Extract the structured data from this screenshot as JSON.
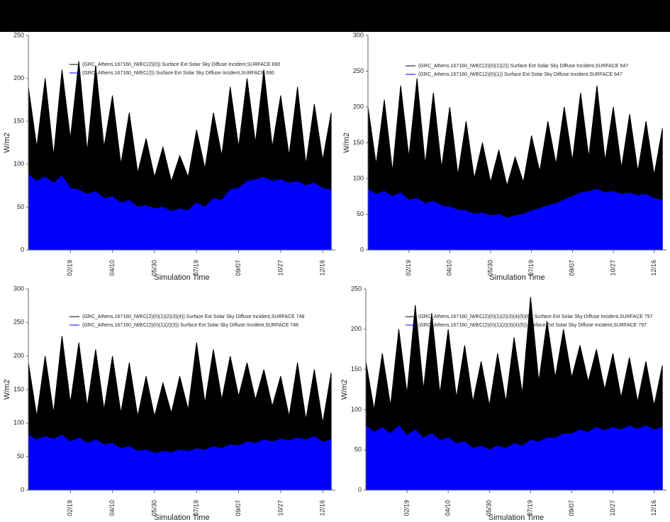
{
  "chart_data": [
    {
      "type": "area",
      "ylabel": "W/m2",
      "xlabel": "Simulation Time",
      "xlim": [
        0,
        365
      ],
      "xticks": [
        {
          "value": 50,
          "label": "02/19"
        },
        {
          "value": 100,
          "label": "04/10"
        },
        {
          "value": 150,
          "label": "05/30"
        },
        {
          "value": 200,
          "label": "07/19"
        },
        {
          "value": 250,
          "label": "09/07"
        },
        {
          "value": 300,
          "label": "10/27"
        },
        {
          "value": 350,
          "label": "12/16"
        }
      ],
      "ylim": [
        0,
        250
      ],
      "yticks": [
        0,
        50,
        100,
        150,
        200,
        250
      ],
      "x": [
        0,
        10,
        20,
        30,
        40,
        50,
        60,
        70,
        80,
        90,
        100,
        110,
        120,
        130,
        140,
        150,
        160,
        170,
        180,
        190,
        200,
        210,
        220,
        230,
        240,
        250,
        260,
        270,
        280,
        290,
        300,
        310,
        320,
        330,
        340,
        350,
        360
      ],
      "series": [
        {
          "name": "(GRC_Athens.167160_IWEC(2)(0)) Surface Ext Solar Sky Diffuse Incident,SURFACE 690",
          "color": "#000000",
          "values": [
            190,
            120,
            200,
            110,
            210,
            130,
            220,
            115,
            215,
            120,
            180,
            100,
            160,
            90,
            130,
            85,
            120,
            80,
            110,
            85,
            140,
            95,
            160,
            110,
            190,
            120,
            200,
            125,
            210,
            120,
            180,
            110,
            190,
            100,
            170,
            105,
            160
          ]
        },
        {
          "name": "(GRC_Athens.167160_IWEC(2)) Surface Ext Solar Sky Diffuse Incident,SURFACE 690",
          "color": "#0000ff",
          "values": [
            88,
            80,
            85,
            78,
            86,
            72,
            70,
            65,
            68,
            60,
            62,
            55,
            58,
            50,
            52,
            48,
            50,
            45,
            48,
            46,
            55,
            50,
            60,
            58,
            70,
            72,
            80,
            82,
            85,
            80,
            82,
            78,
            80,
            75,
            78,
            72,
            70
          ]
        }
      ]
    },
    {
      "type": "area",
      "ylabel": "W/m2",
      "xlabel": "Simulation Time",
      "xlim": [
        0,
        365
      ],
      "xticks": [
        {
          "value": 50,
          "label": "02/19"
        },
        {
          "value": 100,
          "label": "04/10"
        },
        {
          "value": 150,
          "label": "05/30"
        },
        {
          "value": 200,
          "label": "07/19"
        },
        {
          "value": 250,
          "label": "09/07"
        },
        {
          "value": 300,
          "label": "10/27"
        },
        {
          "value": 350,
          "label": "12/16"
        }
      ],
      "ylim": [
        0,
        300
      ],
      "yticks": [
        0,
        50,
        100,
        150,
        200,
        250,
        300
      ],
      "x": [
        0,
        10,
        20,
        30,
        40,
        50,
        60,
        70,
        80,
        90,
        100,
        110,
        120,
        130,
        140,
        150,
        160,
        170,
        180,
        190,
        200,
        210,
        220,
        230,
        240,
        250,
        260,
        270,
        280,
        290,
        300,
        310,
        320,
        330,
        340,
        350,
        360
      ],
      "series": [
        {
          "name": "(GRC_Athens.167160_IWEC(2)(0)(1)(2)) Surface Ext Solar Sky Diffuse Incident,SURFACE 647",
          "color": "#000000",
          "values": [
            200,
            120,
            210,
            110,
            230,
            130,
            240,
            120,
            220,
            115,
            200,
            105,
            180,
            100,
            150,
            95,
            140,
            90,
            130,
            95,
            160,
            110,
            180,
            120,
            200,
            125,
            220,
            130,
            230,
            125,
            200,
            115,
            190,
            110,
            180,
            105,
            170
          ]
        },
        {
          "name": "(GRC_Athens.167160_IWEC(2)(0)(1)) Surface Ext Solar Sky Diffuse Incident,SURFACE 647",
          "color": "#0000ff",
          "values": [
            85,
            78,
            82,
            75,
            80,
            70,
            72,
            65,
            68,
            62,
            60,
            56,
            55,
            50,
            52,
            48,
            50,
            45,
            48,
            50,
            55,
            58,
            62,
            65,
            70,
            75,
            80,
            82,
            85,
            80,
            82,
            78,
            80,
            76,
            78,
            72,
            70
          ]
        }
      ]
    },
    {
      "type": "area",
      "ylabel": "W/m2",
      "xlabel": "Simulation Time",
      "xlim": [
        0,
        365
      ],
      "xticks": [
        {
          "value": 50,
          "label": "02/19"
        },
        {
          "value": 100,
          "label": "04/10"
        },
        {
          "value": 150,
          "label": "05/30"
        },
        {
          "value": 200,
          "label": "07/19"
        },
        {
          "value": 250,
          "label": "09/07"
        },
        {
          "value": 300,
          "label": "10/27"
        },
        {
          "value": 350,
          "label": "12/16"
        }
      ],
      "ylim": [
        0,
        300
      ],
      "yticks": [
        0,
        50,
        100,
        150,
        200,
        250,
        300
      ],
      "x": [
        0,
        10,
        20,
        30,
        40,
        50,
        60,
        70,
        80,
        90,
        100,
        110,
        120,
        130,
        140,
        150,
        160,
        170,
        180,
        190,
        200,
        210,
        220,
        230,
        240,
        250,
        260,
        270,
        280,
        290,
        300,
        310,
        320,
        330,
        340,
        350,
        360
      ],
      "series": [
        {
          "name": "(GRC_Athens.167160_IWEC(2)(0)(1)(2)(3)(4)) Surface Ext Solar Sky Diffuse Incident,SURFACE 748",
          "color": "#000000",
          "values": [
            190,
            110,
            200,
            115,
            230,
            130,
            220,
            125,
            210,
            120,
            200,
            115,
            190,
            110,
            170,
            110,
            160,
            115,
            170,
            120,
            220,
            130,
            210,
            135,
            200,
            140,
            190,
            135,
            180,
            125,
            170,
            110,
            190,
            105,
            180,
            100,
            175
          ]
        },
        {
          "name": "(GRC_Athens.167160_IWEC(2)(0)(1)(2)(3)) Surface Ext Solar Sky Diffuse Incident,SURFACE 748",
          "color": "#0000ff",
          "values": [
            82,
            75,
            80,
            76,
            82,
            72,
            78,
            70,
            75,
            68,
            70,
            62,
            65,
            58,
            60,
            55,
            58,
            56,
            60,
            58,
            62,
            60,
            65,
            62,
            68,
            66,
            72,
            70,
            75,
            72,
            76,
            74,
            78,
            75,
            80,
            72,
            75
          ]
        }
      ]
    },
    {
      "type": "area",
      "ylabel": "W/m2",
      "xlabel": "Simulation Time",
      "xlim": [
        0,
        365
      ],
      "xticks": [
        {
          "value": 50,
          "label": "02/19"
        },
        {
          "value": 100,
          "label": "04/10"
        },
        {
          "value": 150,
          "label": "05/30"
        },
        {
          "value": 200,
          "label": "07/19"
        },
        {
          "value": 250,
          "label": "09/07"
        },
        {
          "value": 300,
          "label": "10/27"
        },
        {
          "value": 350,
          "label": "12/16"
        }
      ],
      "ylim": [
        0,
        250
      ],
      "yticks": [
        0,
        50,
        100,
        150,
        200,
        250
      ],
      "x": [
        0,
        10,
        20,
        30,
        40,
        50,
        60,
        70,
        80,
        90,
        100,
        110,
        120,
        130,
        140,
        150,
        160,
        170,
        180,
        190,
        200,
        210,
        220,
        230,
        240,
        250,
        260,
        270,
        280,
        290,
        300,
        310,
        320,
        330,
        340,
        350,
        360
      ],
      "series": [
        {
          "name": "(GRC_Athens.167160_IWEC(2)(0)(1)(2)(3)(4)(5)(6)) Surface Ext Solar Sky Diffuse Incident,SURFACE 797",
          "color": "#000000",
          "values": [
            160,
            100,
            170,
            105,
            200,
            120,
            230,
            125,
            220,
            120,
            200,
            115,
            180,
            110,
            160,
            105,
            170,
            110,
            190,
            120,
            240,
            135,
            210,
            140,
            200,
            140,
            180,
            135,
            175,
            125,
            170,
            115,
            165,
            110,
            160,
            105,
            155
          ]
        },
        {
          "name": "(GRC_Athens.167160_IWEC(2)(0)(1)(2)(3)(4)(5)) Surface Ext Solar Sky Diffuse Incident,SURFACE 797",
          "color": "#0000ff",
          "values": [
            80,
            72,
            78,
            70,
            80,
            68,
            75,
            65,
            70,
            62,
            65,
            58,
            60,
            52,
            55,
            50,
            55,
            52,
            58,
            55,
            62,
            60,
            65,
            65,
            70,
            70,
            75,
            72,
            78,
            74,
            78,
            75,
            80,
            76,
            80,
            75,
            78
          ]
        }
      ]
    }
  ]
}
